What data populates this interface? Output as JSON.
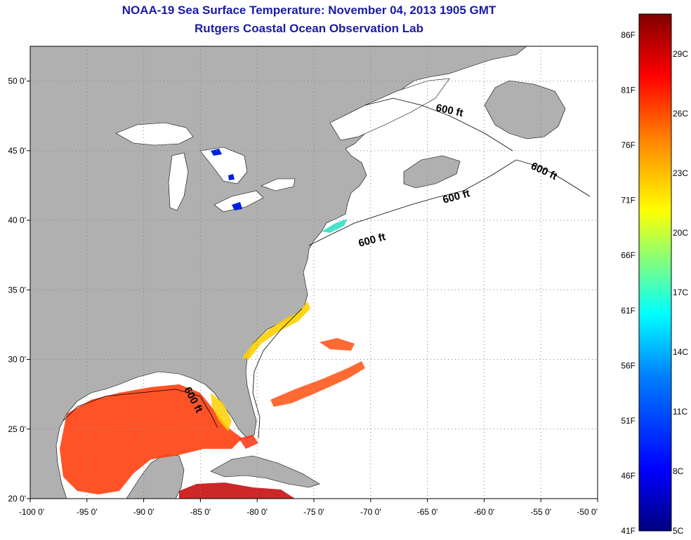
{
  "title": {
    "line1": "NOAA-19 Sea Surface Temperature:  November 04, 2013 1905 GMT",
    "line2": "Rutgers Coastal Ocean Observation Lab"
  },
  "map": {
    "lon_range": [
      -100,
      -50
    ],
    "lat_range": [
      20,
      52.5
    ],
    "x_ticks": [
      {
        "lon": -100,
        "label": "-100 0'"
      },
      {
        "lon": -95,
        "label": "-95 0'"
      },
      {
        "lon": -90,
        "label": "-90 0'"
      },
      {
        "lon": -85,
        "label": "-85 0'"
      },
      {
        "lon": -80,
        "label": "-80 0'"
      },
      {
        "lon": -75,
        "label": "-75 0'"
      },
      {
        "lon": -70,
        "label": "-70 0'"
      },
      {
        "lon": -65,
        "label": "-65 0'"
      },
      {
        "lon": -60,
        "label": "-60 0'"
      },
      {
        "lon": -55,
        "label": "-55 0'"
      },
      {
        "lon": -50,
        "label": "-50 0'"
      }
    ],
    "y_ticks": [
      {
        "lat": 50,
        "label": "50 0'"
      },
      {
        "lat": 45,
        "label": "45 0'"
      },
      {
        "lat": 40,
        "label": "40 0'"
      },
      {
        "lat": 35,
        "label": "35 0'"
      },
      {
        "lat": 30,
        "label": "30 0'"
      },
      {
        "lat": 25,
        "label": "25 0'"
      },
      {
        "lat": 20,
        "label": "20 0'"
      }
    ],
    "grid": true,
    "land_color": "#b0b0b0",
    "ocean_color": "#ffffff",
    "contour_labels": [
      "600 ft",
      "600 ft",
      "600 ft",
      "600 ft",
      "600 ft"
    ]
  },
  "colorbar": {
    "colors": [
      "#00007f",
      "#0000ff",
      "#0080ff",
      "#00ffff",
      "#80ff80",
      "#ffff00",
      "#ff8000",
      "#ff0000",
      "#800000"
    ],
    "fahrenheit_labels": [
      "86F",
      "81F",
      "76F",
      "71F",
      "66F",
      "61F",
      "56F",
      "51F",
      "46F",
      "41F"
    ],
    "celsius_labels": [
      "29C",
      "26C",
      "23C",
      "20C",
      "17C",
      "14C",
      "11C",
      "8C",
      "5C"
    ]
  }
}
